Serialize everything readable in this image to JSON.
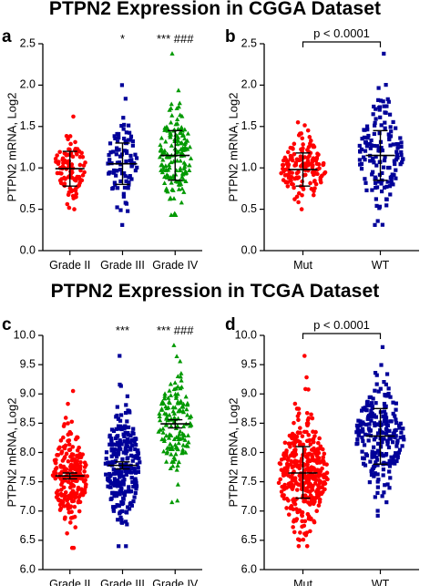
{
  "titles": {
    "top": "PTPN2 Expression in CGGA Dataset",
    "bottom": "PTPN2 Expression in TCGA Dataset"
  },
  "colors": {
    "red": "#ff0000",
    "blue": "#000099",
    "green": "#009900",
    "axis": "#000000"
  },
  "chart_data": [
    {
      "panel": "a",
      "type": "scatter",
      "ylabel": "PTPN2 mRNA, Log2",
      "ylim": [
        0.0,
        2.5
      ],
      "yticks": [
        "0.0",
        "0.5",
        "1.0",
        "1.5",
        "2.0",
        "2.5"
      ],
      "categories": [
        "Grade II",
        "Grade III",
        "Grade IV"
      ],
      "annotations": [
        "",
        "*",
        "*** ###"
      ],
      "series": [
        {
          "category": "Grade II",
          "marker": "circle",
          "color": "#ff0000",
          "mean": 0.99,
          "sd_low": 0.78,
          "sd_high": 1.2,
          "min": 0.5,
          "max": 1.62,
          "n": 95
        },
        {
          "category": "Grade III",
          "marker": "square",
          "color": "#000099",
          "mean": 1.05,
          "sd_low": 0.8,
          "sd_high": 1.3,
          "min": 0.31,
          "max": 2.0,
          "n": 90
        },
        {
          "category": "Grade IV",
          "marker": "triangle",
          "color": "#009900",
          "mean": 1.15,
          "sd_low": 0.85,
          "sd_high": 1.45,
          "min": 0.43,
          "max": 2.38,
          "n": 160
        }
      ]
    },
    {
      "panel": "b",
      "type": "scatter",
      "ylabel": "PTPN2 mRNA, Log2",
      "ylim": [
        0.0,
        2.5
      ],
      "yticks": [
        "0.0",
        "0.5",
        "1.0",
        "1.5",
        "2.0",
        "2.5"
      ],
      "categories": [
        "Mut",
        "WT"
      ],
      "pvalue": "p < 0.0001",
      "series": [
        {
          "category": "Mut",
          "marker": "circle",
          "color": "#ff0000",
          "mean": 0.98,
          "sd_low": 0.78,
          "sd_high": 1.18,
          "min": 0.5,
          "max": 1.55,
          "n": 150
        },
        {
          "category": "WT",
          "marker": "square",
          "color": "#000099",
          "mean": 1.15,
          "sd_low": 0.85,
          "sd_high": 1.45,
          "min": 0.31,
          "max": 2.38,
          "n": 150
        }
      ]
    },
    {
      "panel": "c",
      "type": "scatter",
      "ylabel": "PTPN2 mRNA, Log2",
      "ylim": [
        6.0,
        10.0
      ],
      "yticks": [
        "6.0",
        "6.5",
        "7.0",
        "7.5",
        "8.0",
        "8.5",
        "9.0",
        "9.5",
        "10.0"
      ],
      "categories": [
        "Grade II",
        "Grade III",
        "Grade IV"
      ],
      "annotations": [
        "",
        "***",
        "*** ###"
      ],
      "series": [
        {
          "category": "Grade II",
          "marker": "circle",
          "color": "#ff0000",
          "mean": 7.6,
          "sd_low": 7.55,
          "sd_high": 7.65,
          "min": 6.37,
          "max": 9.05,
          "n": 220
        },
        {
          "category": "Grade III",
          "marker": "square",
          "color": "#000099",
          "mean": 7.78,
          "sd_low": 7.72,
          "sd_high": 7.84,
          "min": 6.4,
          "max": 9.65,
          "n": 260
        },
        {
          "category": "Grade IV",
          "marker": "triangle",
          "color": "#009900",
          "mean": 8.49,
          "sd_low": 8.42,
          "sd_high": 8.56,
          "min": 7.15,
          "max": 9.83,
          "n": 150
        }
      ]
    },
    {
      "panel": "d",
      "type": "scatter",
      "ylabel": "PTPN2 mRNA, Log2",
      "ylim": [
        6.0,
        10.0
      ],
      "yticks": [
        "6.0",
        "6.5",
        "7.0",
        "7.5",
        "8.0",
        "8.5",
        "9.0",
        "9.5",
        "10.0"
      ],
      "categories": [
        "Mut",
        "WT"
      ],
      "pvalue": "p < 0.0001",
      "series": [
        {
          "category": "Mut",
          "marker": "circle",
          "color": "#ff0000",
          "mean": 7.65,
          "sd_low": 7.22,
          "sd_high": 8.1,
          "min": 6.4,
          "max": 9.65,
          "n": 380
        },
        {
          "category": "WT",
          "marker": "square",
          "color": "#000099",
          "mean": 8.28,
          "sd_low": 7.8,
          "sd_high": 8.75,
          "min": 6.92,
          "max": 9.8,
          "n": 230
        }
      ]
    }
  ]
}
